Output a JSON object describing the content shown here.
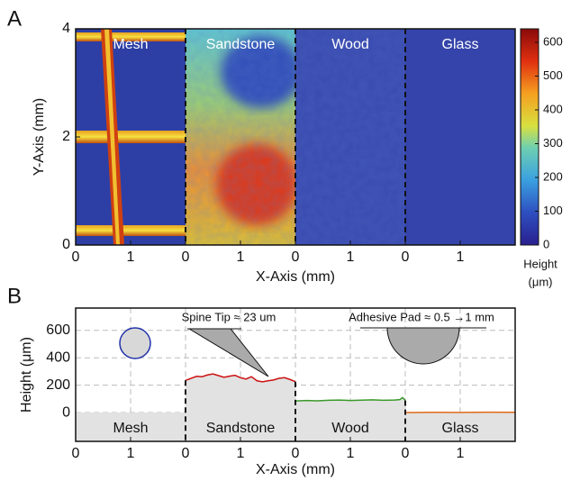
{
  "chart_data": [
    {
      "type": "heatmap",
      "panel_label": "A",
      "xlabel": "X-Axis (mm)",
      "ylabel": "Y-Axis (mm)",
      "regions": [
        "Mesh",
        "Sandstone",
        "Wood",
        "Glass"
      ],
      "xlim": [
        0,
        2
      ],
      "xticks": [
        0,
        1
      ],
      "ylim": [
        0,
        4
      ],
      "yticks": [
        0,
        2,
        4
      ],
      "clim": [
        0,
        640
      ],
      "cticks": [
        0,
        100,
        200,
        300,
        400,
        500,
        600
      ],
      "colorbar_label": [
        "Height",
        "(μm)"
      ]
    },
    {
      "type": "line",
      "panel_label": "B",
      "xlabel": "X-Axis (mm)",
      "ylabel": "Height (μm)",
      "xlim": [
        0,
        2
      ],
      "xticks": [
        0,
        1
      ],
      "ylim": [
        -210,
        763
      ],
      "yticks": [
        0,
        200,
        400,
        600
      ],
      "grid": true,
      "annotations": [
        "Spine Tip ≈ 23 um",
        "Adhesive Pad ≈  0.5 →1 mm"
      ],
      "regions": [
        {
          "name": "Mesh",
          "x": [
            0,
            2
          ],
          "values": [
            0,
            0
          ]
        },
        {
          "name": "Sandstone",
          "color": "#cc1111",
          "x": [
            0,
            0.1,
            0.2,
            0.3,
            0.4,
            0.5,
            0.6,
            0.7,
            0.8,
            0.9,
            1.0,
            1.1,
            1.2,
            1.3,
            1.4,
            1.5,
            1.6,
            1.7,
            1.8,
            1.9,
            2.0
          ],
          "values": [
            235,
            250,
            265,
            262,
            275,
            282,
            270,
            258,
            266,
            272,
            255,
            245,
            262,
            232,
            225,
            232,
            238,
            250,
            255,
            242,
            225
          ]
        },
        {
          "name": "Wood",
          "color": "#3a9a2a",
          "x": [
            0,
            0.2,
            0.4,
            0.6,
            0.8,
            1.0,
            1.2,
            1.4,
            1.6,
            1.8,
            1.9,
            1.95,
            2.0
          ],
          "values": [
            85,
            88,
            86,
            90,
            92,
            88,
            91,
            93,
            90,
            92,
            95,
            110,
            88
          ]
        },
        {
          "name": "Glass",
          "color": "#e06a1a",
          "x": [
            0,
            0.5,
            1.0,
            1.5,
            2.0
          ],
          "values": [
            0,
            2,
            1,
            3,
            2
          ]
        }
      ]
    }
  ]
}
